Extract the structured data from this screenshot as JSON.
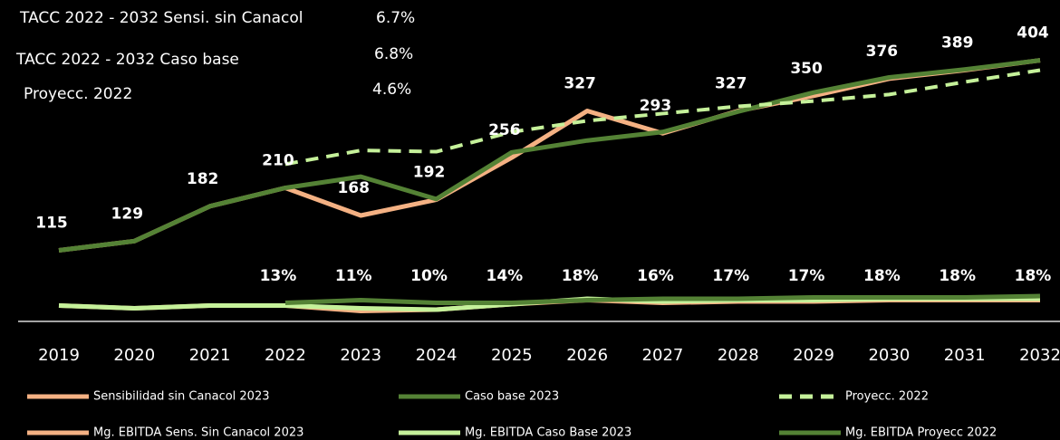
{
  "chart_data": {
    "type": "line",
    "annotations": [
      {
        "label": "TACC 2022 - 2032  Sensi. sin Canacol",
        "value": "6.7%"
      },
      {
        "label": "TACC 2022 - 2032  Caso base",
        "value": "6.8%"
      },
      {
        "label": "Proyecc. 2022",
        "value": "4.6%"
      }
    ],
    "categories": [
      "2019",
      "2020",
      "2021",
      "2022",
      "2023",
      "2024",
      "2025",
      "2026",
      "2027",
      "2028",
      "2029",
      "2030",
      "2031",
      "2032"
    ],
    "ylim": [
      0,
      420
    ],
    "y2lim": [
      0,
      40
    ],
    "series": [
      {
        "name": "Sensibilidad sin Canacol 2023",
        "color": "#f4b183",
        "values": [
          115,
          129,
          182,
          210,
          168,
          192,
          256,
          327,
          293,
          327,
          350,
          376,
          389,
          404
        ],
        "labels_shown": true
      },
      {
        "name": "Caso base 2023",
        "color": "#548235",
        "values": [
          115,
          129,
          182,
          210,
          227,
          193,
          264,
          282,
          295,
          326,
          355,
          378,
          390,
          404
        ]
      },
      {
        "name": "Proyecc. 2022",
        "color": "#c5f19a",
        "dashed": true,
        "values": [
          null,
          null,
          null,
          246,
          267,
          265,
          295,
          312,
          323,
          334,
          342,
          352,
          371,
          389
        ]
      },
      {
        "name": "Mg. EBITDA Sens. Sin Canacol 2023",
        "color": "#f4b183",
        "axis": "y2",
        "values": [
          13,
          11,
          13,
          13,
          9,
          10,
          14,
          17,
          15,
          16,
          16,
          17,
          17,
          17
        ]
      },
      {
        "name": "Mg. EBITDA Caso Base 2023",
        "color": "#c5f19a",
        "axis": "y2",
        "values": [
          13,
          11,
          13,
          13,
          11,
          10,
          14,
          18,
          16,
          17,
          17,
          18,
          18,
          18
        ],
        "value_labels": [
          null,
          null,
          null,
          "13%",
          "11%",
          "10%",
          "14%",
          "18%",
          "16%",
          "17%",
          "17%",
          "18%",
          "18%",
          "18%"
        ]
      },
      {
        "name": "Mg. EBITDA Proyecc 2022",
        "color": "#548235",
        "axis": "y2",
        "values": [
          null,
          null,
          null,
          15,
          17,
          15,
          15,
          17,
          18,
          18,
          19,
          19,
          19,
          20
        ]
      }
    ]
  }
}
